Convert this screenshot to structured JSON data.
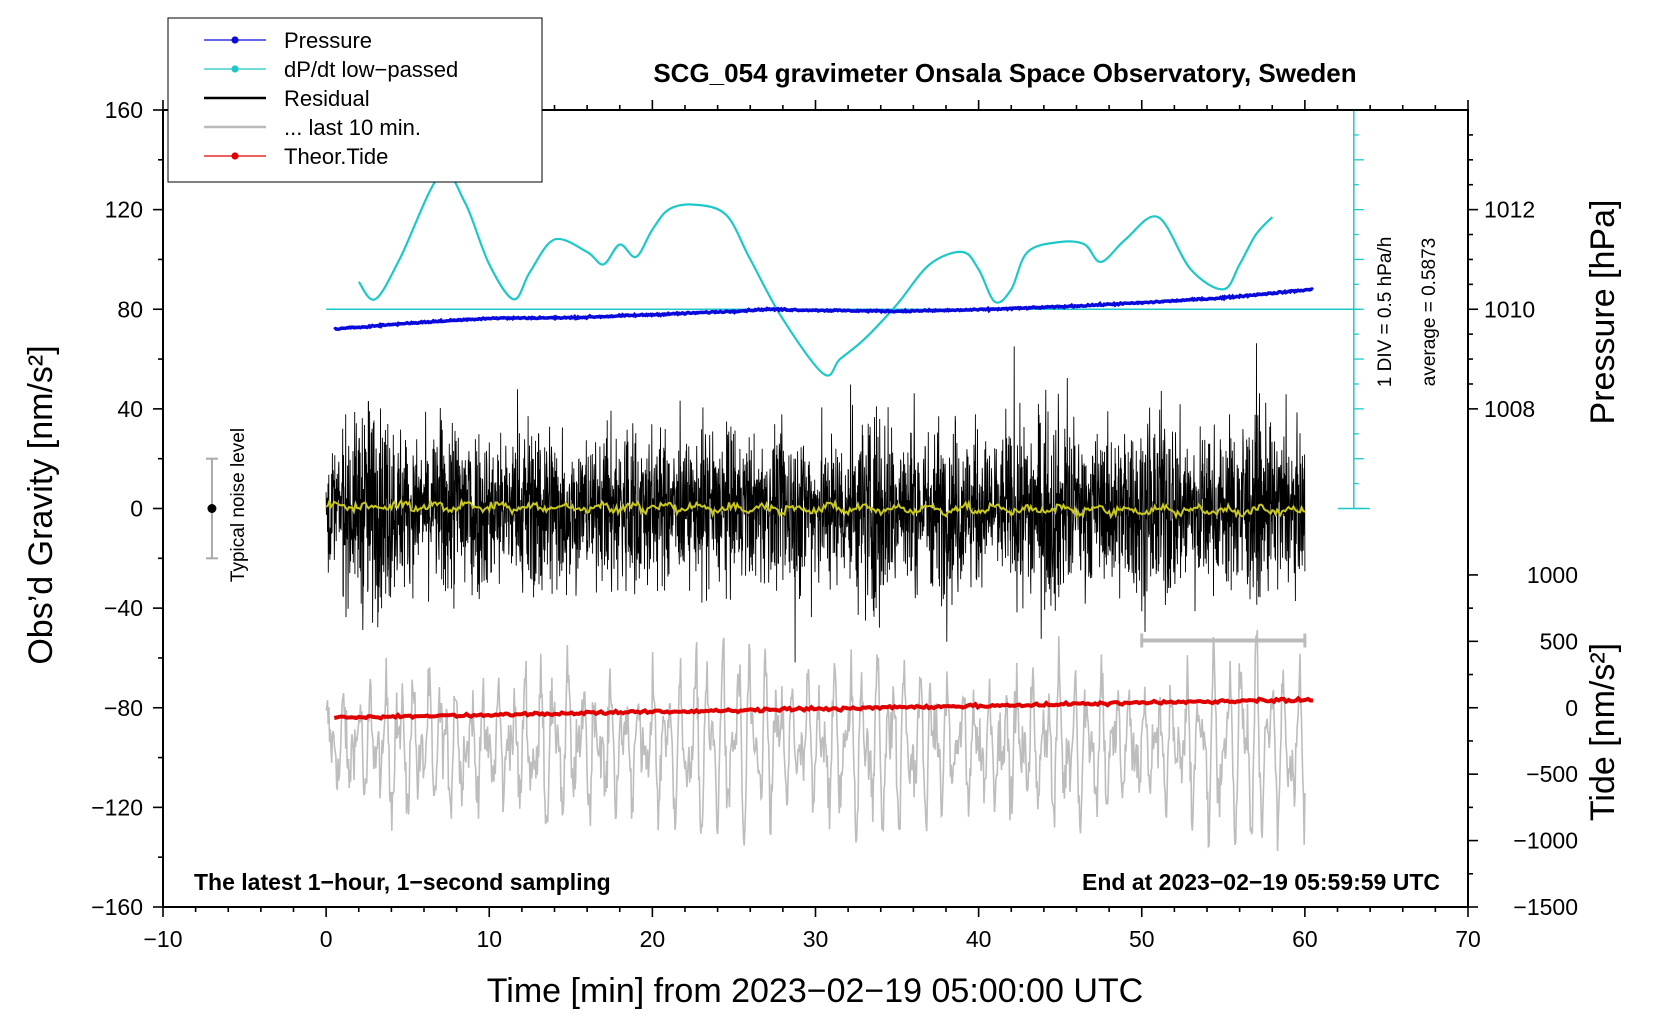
{
  "chart_data": {
    "type": "line",
    "title": "SCG_054 gravimeter Onsala Space Observatory, Sweden",
    "xlabel": "Time [min] from 2023−02−19 05:00:00 UTC",
    "ylabel_left": "Obs’d Gravity [nm/s²]",
    "ylabel_right_pressure": "Pressure [hPa]",
    "ylabel_right_tide": "Tide [nm/s²]",
    "xlim": [
      -10,
      70
    ],
    "ylim": [
      -160,
      160
    ],
    "x_ticks": [
      -10,
      0,
      10,
      20,
      30,
      40,
      50,
      60,
      70
    ],
    "x_tick_labels": [
      "−10",
      "0",
      "10",
      "20",
      "30",
      "40",
      "50",
      "60",
      "70"
    ],
    "y_ticks": [
      -160,
      -120,
      -80,
      -40,
      0,
      40,
      80,
      120,
      160
    ],
    "y_tick_labels": [
      "−160",
      "−120",
      "−80",
      "−40",
      "0",
      "40",
      "80",
      "120",
      "160"
    ],
    "pressure_axis": {
      "ticks": [
        1008,
        1010,
        1012
      ],
      "tick_labels": [
        "1008",
        "1010",
        "1012"
      ],
      "units_per_gravity": 0.05,
      "offset_gravity_at_1010": 80
    },
    "tide_axis": {
      "ticks": [
        -1500,
        -1000,
        -500,
        0,
        500,
        1000
      ],
      "tick_labels": [
        "−1500",
        "−1000",
        "−500",
        "0",
        "500",
        "1000"
      ],
      "zero_in_gravity": -80,
      "gravity_per_unit": 0.05333
    },
    "dpdt_scale": {
      "divisions": 8,
      "label_div": "1 DIV = 0.5 hPa/h",
      "label_avg": "average = 0.5873",
      "baseline_gravity": 80,
      "x_min": 63
    },
    "legend": [
      {
        "label": "Pressure",
        "color": "#0a0adc",
        "style": "line-dot"
      },
      {
        "label": "dP/dt low−passed",
        "color": "#1ec8c8",
        "style": "line-dot"
      },
      {
        "label": "Residual",
        "color": "#000000",
        "style": "line"
      },
      {
        "label": "... last 10 min.",
        "color": "#bbbbbb",
        "style": "line"
      },
      {
        "label": "Theor.Tide",
        "color": "#e00000",
        "style": "line-dot"
      }
    ],
    "noise_bar": {
      "label": "Typical noise level",
      "x": -7,
      "y": 0,
      "low": -20,
      "high": 20
    },
    "last10_bar": {
      "x_start": 50,
      "x_end": 60,
      "y": -53
    },
    "series": [
      {
        "name": "Pressure",
        "unit": "hPa",
        "x": [
          0.5,
          5,
          10,
          15,
          20,
          25,
          27,
          30,
          35,
          40,
          45,
          50,
          55,
          60.5
        ],
        "values": [
          1009.6,
          1009.72,
          1009.82,
          1009.83,
          1009.89,
          1009.96,
          1010.0,
          1009.98,
          1009.96,
          1009.99,
          1010.05,
          1010.13,
          1010.23,
          1010.4
        ]
      },
      {
        "name": "dP/dt low−passed",
        "unit": "gravity-axis units",
        "x": [
          2,
          3,
          4.5,
          7,
          8.5,
          10,
          11.5,
          12.5,
          14,
          16,
          17,
          18,
          19,
          20,
          21,
          22.5,
          24.5,
          26,
          28,
          30.5,
          31.5,
          33,
          35,
          37,
          39,
          40,
          41,
          42,
          43,
          45,
          46.5,
          47.5,
          49,
          51,
          53,
          55,
          56,
          57,
          58
        ],
        "values": [
          91,
          84,
          100,
          134,
          123,
          98,
          84,
          95,
          108,
          103,
          98,
          106,
          101,
          112,
          120,
          122,
          118,
          100,
          76,
          54,
          60,
          68,
          82,
          98,
          103,
          96,
          83,
          88,
          103,
          107,
          106,
          99,
          108,
          117,
          96,
          88,
          98,
          110,
          117
        ]
      },
      {
        "name": "Residual",
        "unit": "nm/s²",
        "x_range": [
          0,
          60
        ],
        "envelope": [
          28,
          40,
          52,
          48,
          38,
          30,
          34,
          44,
          50,
          40,
          36,
          34,
          42,
          45,
          38,
          34,
          30,
          40,
          44,
          38,
          35,
          32,
          30,
          42,
          38,
          34,
          32,
          34,
          40,
          38,
          36,
          34,
          44,
          52,
          45,
          38,
          36,
          40,
          42,
          38,
          32,
          34,
          40,
          46,
          48,
          40,
          36,
          34,
          38,
          40,
          44,
          46,
          40,
          36,
          34,
          38,
          42,
          40,
          36,
          32
        ]
      },
      {
        "name": "Residual smoothed",
        "unit": "nm/s²",
        "x": [
          0,
          10,
          20,
          30,
          40,
          50,
          60
        ],
        "values": [
          1,
          0,
          0,
          0,
          0,
          -1,
          -1
        ]
      },
      {
        "name": "... last 10 min.",
        "unit": "nm/s²",
        "x_range": [
          0,
          60
        ],
        "offset": -95,
        "amplitude": [
          18,
          24,
          30,
          26,
          20,
          22,
          32,
          30,
          26,
          22,
          28,
          36,
          40,
          32,
          26,
          30,
          38,
          34,
          28,
          24,
          20,
          26,
          32,
          30,
          24,
          22,
          28,
          40,
          44,
          34
        ]
      },
      {
        "name": "Theor.Tide",
        "unit": "nm/s²",
        "x": [
          0.5,
          60.5
        ],
        "values": [
          -75,
          60
        ]
      }
    ]
  },
  "notes": {
    "left": "The latest 1−hour, 1−second sampling",
    "right": "End at 2023−02−19 05:59:59 UTC"
  }
}
